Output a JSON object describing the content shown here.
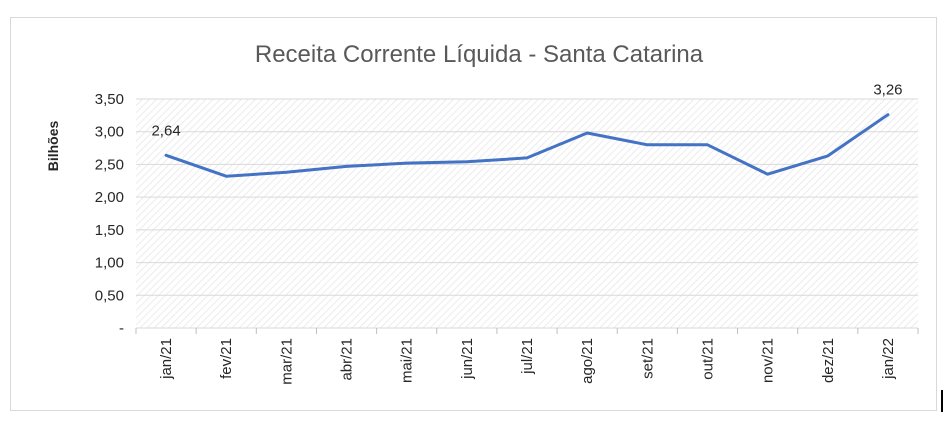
{
  "chart_data": {
    "type": "line",
    "title": "Receita Corrente Líquida - Santa Catarina",
    "ylabel": "Bilhões",
    "xlabel": "",
    "categories": [
      "jan/21",
      "fev/21",
      "mar/21",
      "abr/21",
      "mai/21",
      "jun/21",
      "jul/21",
      "ago/21",
      "set/21",
      "out/21",
      "nov/21",
      "dez/21",
      "jan/22"
    ],
    "series": [
      {
        "values": [
          2.64,
          2.32,
          2.38,
          2.47,
          2.52,
          2.54,
          2.6,
          2.98,
          2.8,
          2.8,
          2.35,
          2.63,
          3.26
        ]
      }
    ],
    "ylim": [
      0,
      3.5
    ],
    "yticks": [
      {
        "value": 0,
        "label": "-"
      },
      {
        "value": 0.5,
        "label": "0,50"
      },
      {
        "value": 1.0,
        "label": "1,00"
      },
      {
        "value": 1.5,
        "label": "1,50"
      },
      {
        "value": 2.0,
        "label": "2,00"
      },
      {
        "value": 2.5,
        "label": "2,50"
      },
      {
        "value": 3.0,
        "label": "3,00"
      },
      {
        "value": 3.5,
        "label": "3,50"
      }
    ],
    "data_labels": [
      {
        "index": 0,
        "text": "2,64"
      },
      {
        "index": 12,
        "text": "3,26"
      }
    ],
    "grid": true,
    "legend": "none",
    "line_color": "#4472c4"
  }
}
